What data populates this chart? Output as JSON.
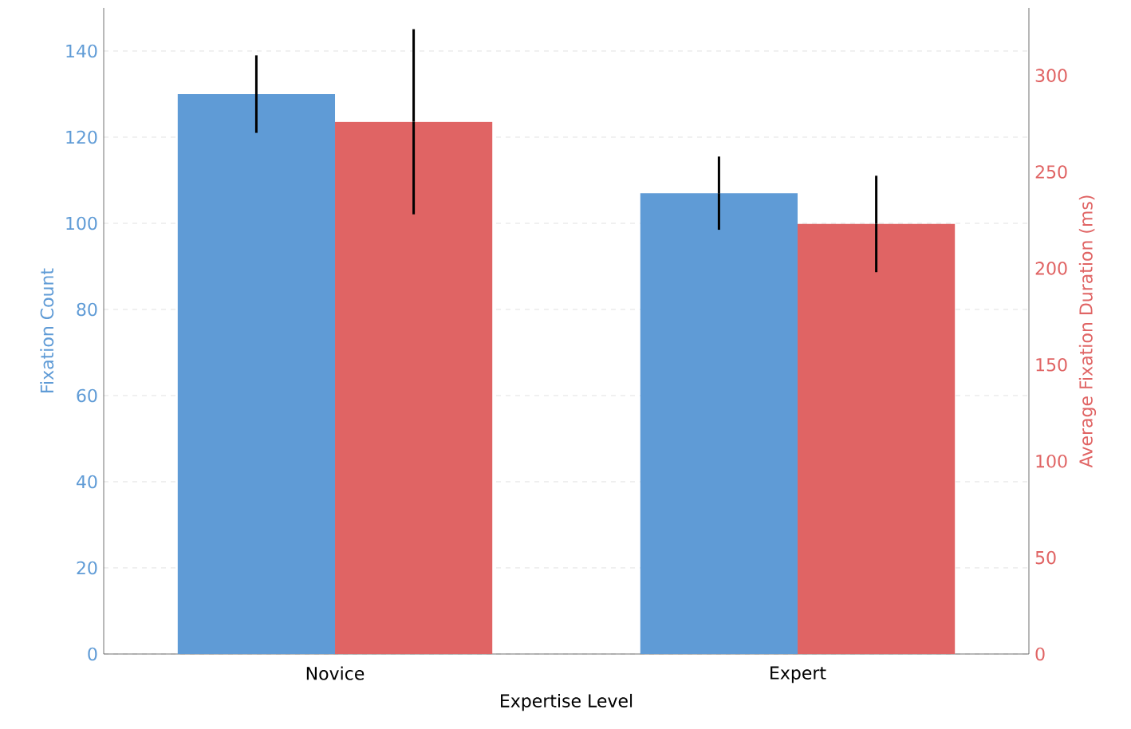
{
  "chart_data": {
    "type": "bar",
    "xlabel": "Expertise Level",
    "ylabel": "Fixation Count",
    "y2label": "Average Fixation Duration (ms)",
    "categories": [
      "Novice",
      "Expert"
    ],
    "series": [
      {
        "color": "#5f9bd6",
        "values": [
          130,
          107
        ],
        "errors": [
          9,
          8.5
        ]
      },
      {
        "color": "#e06464",
        "values": [
          276,
          223
        ],
        "errors": [
          48,
          25
        ],
        "axis": "y2"
      }
    ],
    "ylim": [
      0,
      150
    ],
    "yticks": [
      0,
      20,
      40,
      60,
      80,
      100,
      120,
      140
    ],
    "y2lim": [
      0,
      335
    ],
    "y2ticks": [
      0,
      50,
      100,
      150,
      200,
      250,
      300
    ],
    "grid": "y"
  }
}
